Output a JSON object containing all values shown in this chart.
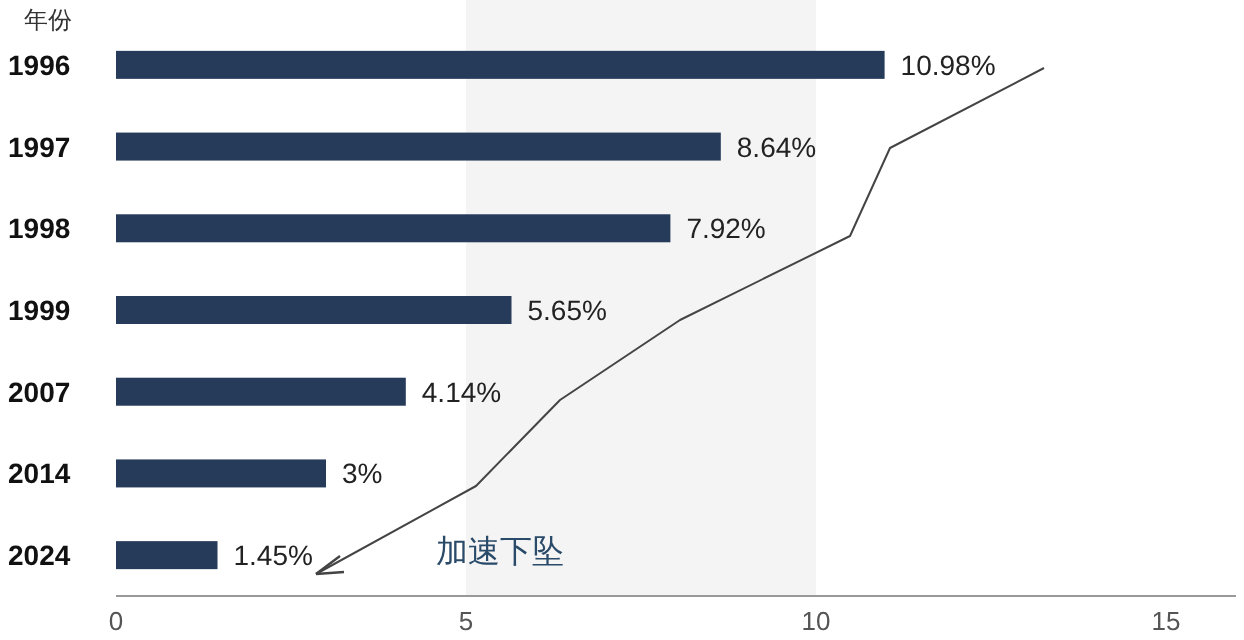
{
  "chart_data": {
    "type": "bar",
    "orientation": "horizontal",
    "ylabel": "年份",
    "categories": [
      "1996",
      "1997",
      "1998",
      "1999",
      "2007",
      "2014",
      "2024"
    ],
    "values": [
      10.98,
      8.64,
      7.92,
      5.65,
      4.14,
      3,
      1.45
    ],
    "value_labels": [
      "10.98%",
      "8.64%",
      "7.92%",
      "5.65%",
      "4.14%",
      "3%",
      "1.45%"
    ],
    "color": "#263a5a",
    "xlim": [
      0,
      16
    ],
    "xticks": [
      0,
      5,
      10,
      15
    ],
    "bands": [
      {
        "axis": "x",
        "from": 5,
        "to": 10,
        "color": "#f4f4f4"
      }
    ],
    "annotations": [
      "加速下坠"
    ],
    "grid": false
  }
}
